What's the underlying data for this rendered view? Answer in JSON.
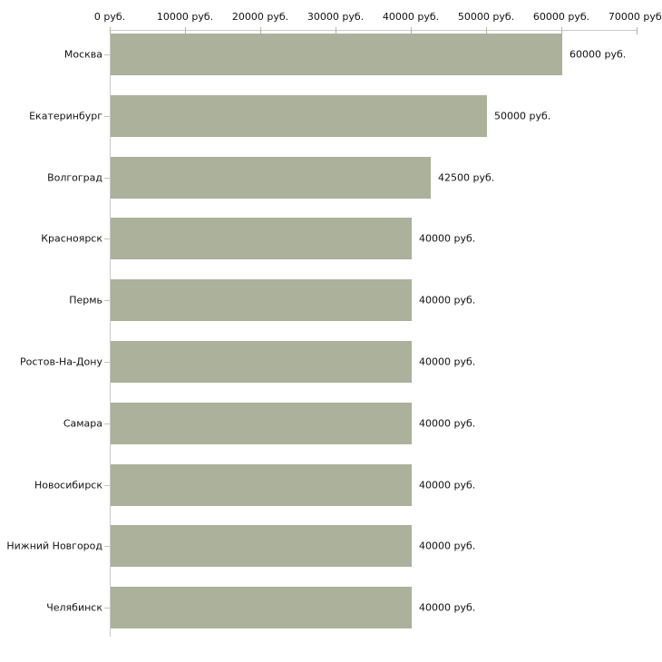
{
  "chart_data": {
    "type": "bar",
    "orientation": "horizontal",
    "title": "",
    "xlabel": "",
    "ylabel": "",
    "unit": "руб.",
    "categories": [
      "Москва",
      "Екатеринбург",
      "Волгоград",
      "Красноярск",
      "Пермь",
      "Ростов-На-Дону",
      "Самара",
      "Новосибирск",
      "Нижний Новгород",
      "Челябинск"
    ],
    "values": [
      60000,
      50000,
      42500,
      40000,
      40000,
      40000,
      40000,
      40000,
      40000,
      40000
    ],
    "value_labels": [
      "60000 руб.",
      "50000 руб.",
      "42500 руб.",
      "40000 руб.",
      "40000 руб.",
      "40000 руб.",
      "40000 руб.",
      "40000 руб.",
      "40000 руб.",
      "40000 руб."
    ],
    "x_tick_values": [
      0,
      10000,
      20000,
      30000,
      40000,
      50000,
      60000,
      70000
    ],
    "x_tick_labels": [
      "0 руб.",
      "10000 руб.",
      "20000 руб.",
      "30000 руб.",
      "40000 руб.",
      "50000 руб.",
      "60000 руб.",
      "70000 руб."
    ],
    "xlim": [
      0,
      70000
    ],
    "grid": false,
    "legend": "none",
    "colors": {
      "bar": "#abb19a",
      "axis_line": "#c9c9c9",
      "x_tick": "#b5b59b",
      "y_tick": "#c5c5b0",
      "text": "#111111",
      "background": "#ffffff"
    }
  }
}
